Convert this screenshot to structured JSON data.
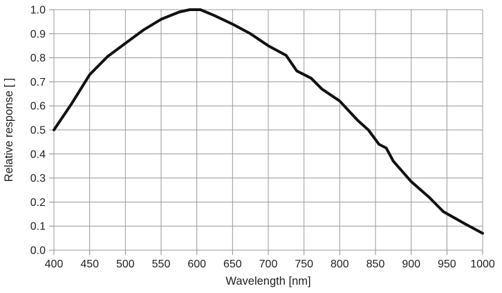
{
  "chart_data": {
    "type": "line",
    "title": "",
    "xlabel": "Wavelength [nm]",
    "ylabel": "Relative response [ ]",
    "xlim": [
      400,
      1000
    ],
    "ylim": [
      0.0,
      1.0
    ],
    "grid": true,
    "legend": "none",
    "x_ticks": [
      400,
      450,
      500,
      550,
      600,
      650,
      700,
      750,
      800,
      850,
      900,
      950,
      1000
    ],
    "y_ticks": [
      0.0,
      0.1,
      0.2,
      0.3,
      0.4,
      0.5,
      0.6,
      0.7,
      0.8,
      0.9,
      1.0
    ],
    "series": [
      {
        "name": "relative-response",
        "x": [
          400,
          425,
          450,
          475,
          500,
          525,
          550,
          575,
          590,
          605,
          625,
          650,
          675,
          700,
          725,
          740,
          760,
          775,
          800,
          825,
          840,
          855,
          865,
          875,
          900,
          925,
          945,
          975,
          1000
        ],
        "y": [
          0.5,
          0.61,
          0.73,
          0.805,
          0.86,
          0.915,
          0.96,
          0.99,
          1.0,
          1.0,
          0.975,
          0.94,
          0.9,
          0.85,
          0.81,
          0.745,
          0.715,
          0.67,
          0.62,
          0.54,
          0.5,
          0.44,
          0.425,
          0.37,
          0.285,
          0.22,
          0.16,
          0.11,
          0.07
        ]
      }
    ],
    "colors": {
      "curve": "#111111",
      "grid": "#999999",
      "axis": "#8c8c8c",
      "text": "#1f1f1f",
      "background": "#ffffff"
    }
  }
}
